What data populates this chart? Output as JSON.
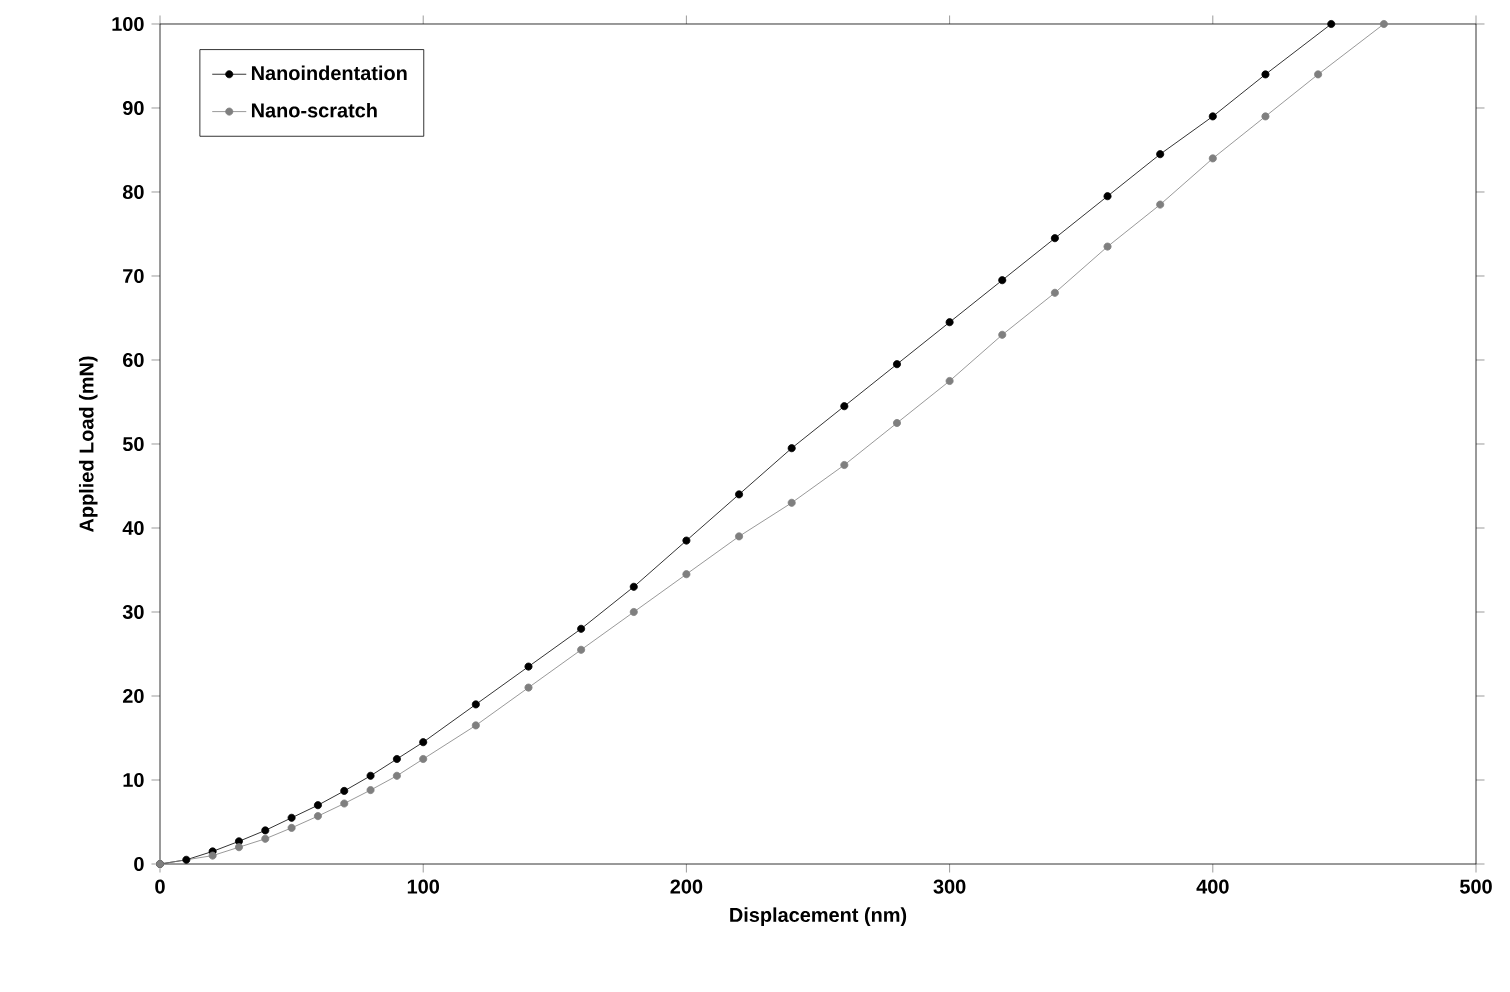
{
  "chart_data": {
    "type": "line",
    "xlabel": "Displacement (nm)",
    "ylabel": "Applied Load (mN)",
    "xlim": [
      0,
      500
    ],
    "ylim": [
      0,
      100
    ],
    "xticks": [
      0,
      100,
      200,
      300,
      400,
      500
    ],
    "yticks": [
      0,
      10,
      20,
      30,
      40,
      50,
      60,
      70,
      80,
      90,
      100
    ],
    "marker": "circle",
    "legend": "top left",
    "series": [
      {
        "name": "Nanoindentation",
        "color": "#000000",
        "x": [
          0,
          10,
          20,
          30,
          40,
          50,
          60,
          70,
          80,
          90,
          100,
          120,
          140,
          160,
          180,
          200,
          220,
          240,
          260,
          280,
          300,
          320,
          340,
          360,
          380,
          400,
          420,
          445
        ],
        "values": [
          0,
          0.5,
          1.5,
          2.7,
          4,
          5.5,
          7,
          8.7,
          10.5,
          12.5,
          14.5,
          19,
          23.5,
          28,
          33,
          38.5,
          44,
          49.5,
          54.5,
          59.5,
          64.5,
          69.5,
          74.5,
          79.5,
          84.5,
          89,
          94,
          100
        ]
      },
      {
        "name": "Nano-scratch",
        "color": "#7f7f7f",
        "x": [
          0,
          20,
          30,
          40,
          50,
          60,
          70,
          80,
          90,
          100,
          120,
          140,
          160,
          180,
          200,
          220,
          240,
          260,
          280,
          300,
          320,
          340,
          360,
          380,
          400,
          420,
          440,
          465
        ],
        "values": [
          0,
          1,
          2,
          3,
          4.3,
          5.7,
          7.2,
          8.8,
          10.5,
          12.5,
          16.5,
          21,
          25.5,
          30,
          34.5,
          39,
          43,
          47.5,
          52.5,
          57.5,
          63,
          68,
          73.5,
          78.5,
          84,
          89,
          94,
          100
        ]
      }
    ]
  }
}
